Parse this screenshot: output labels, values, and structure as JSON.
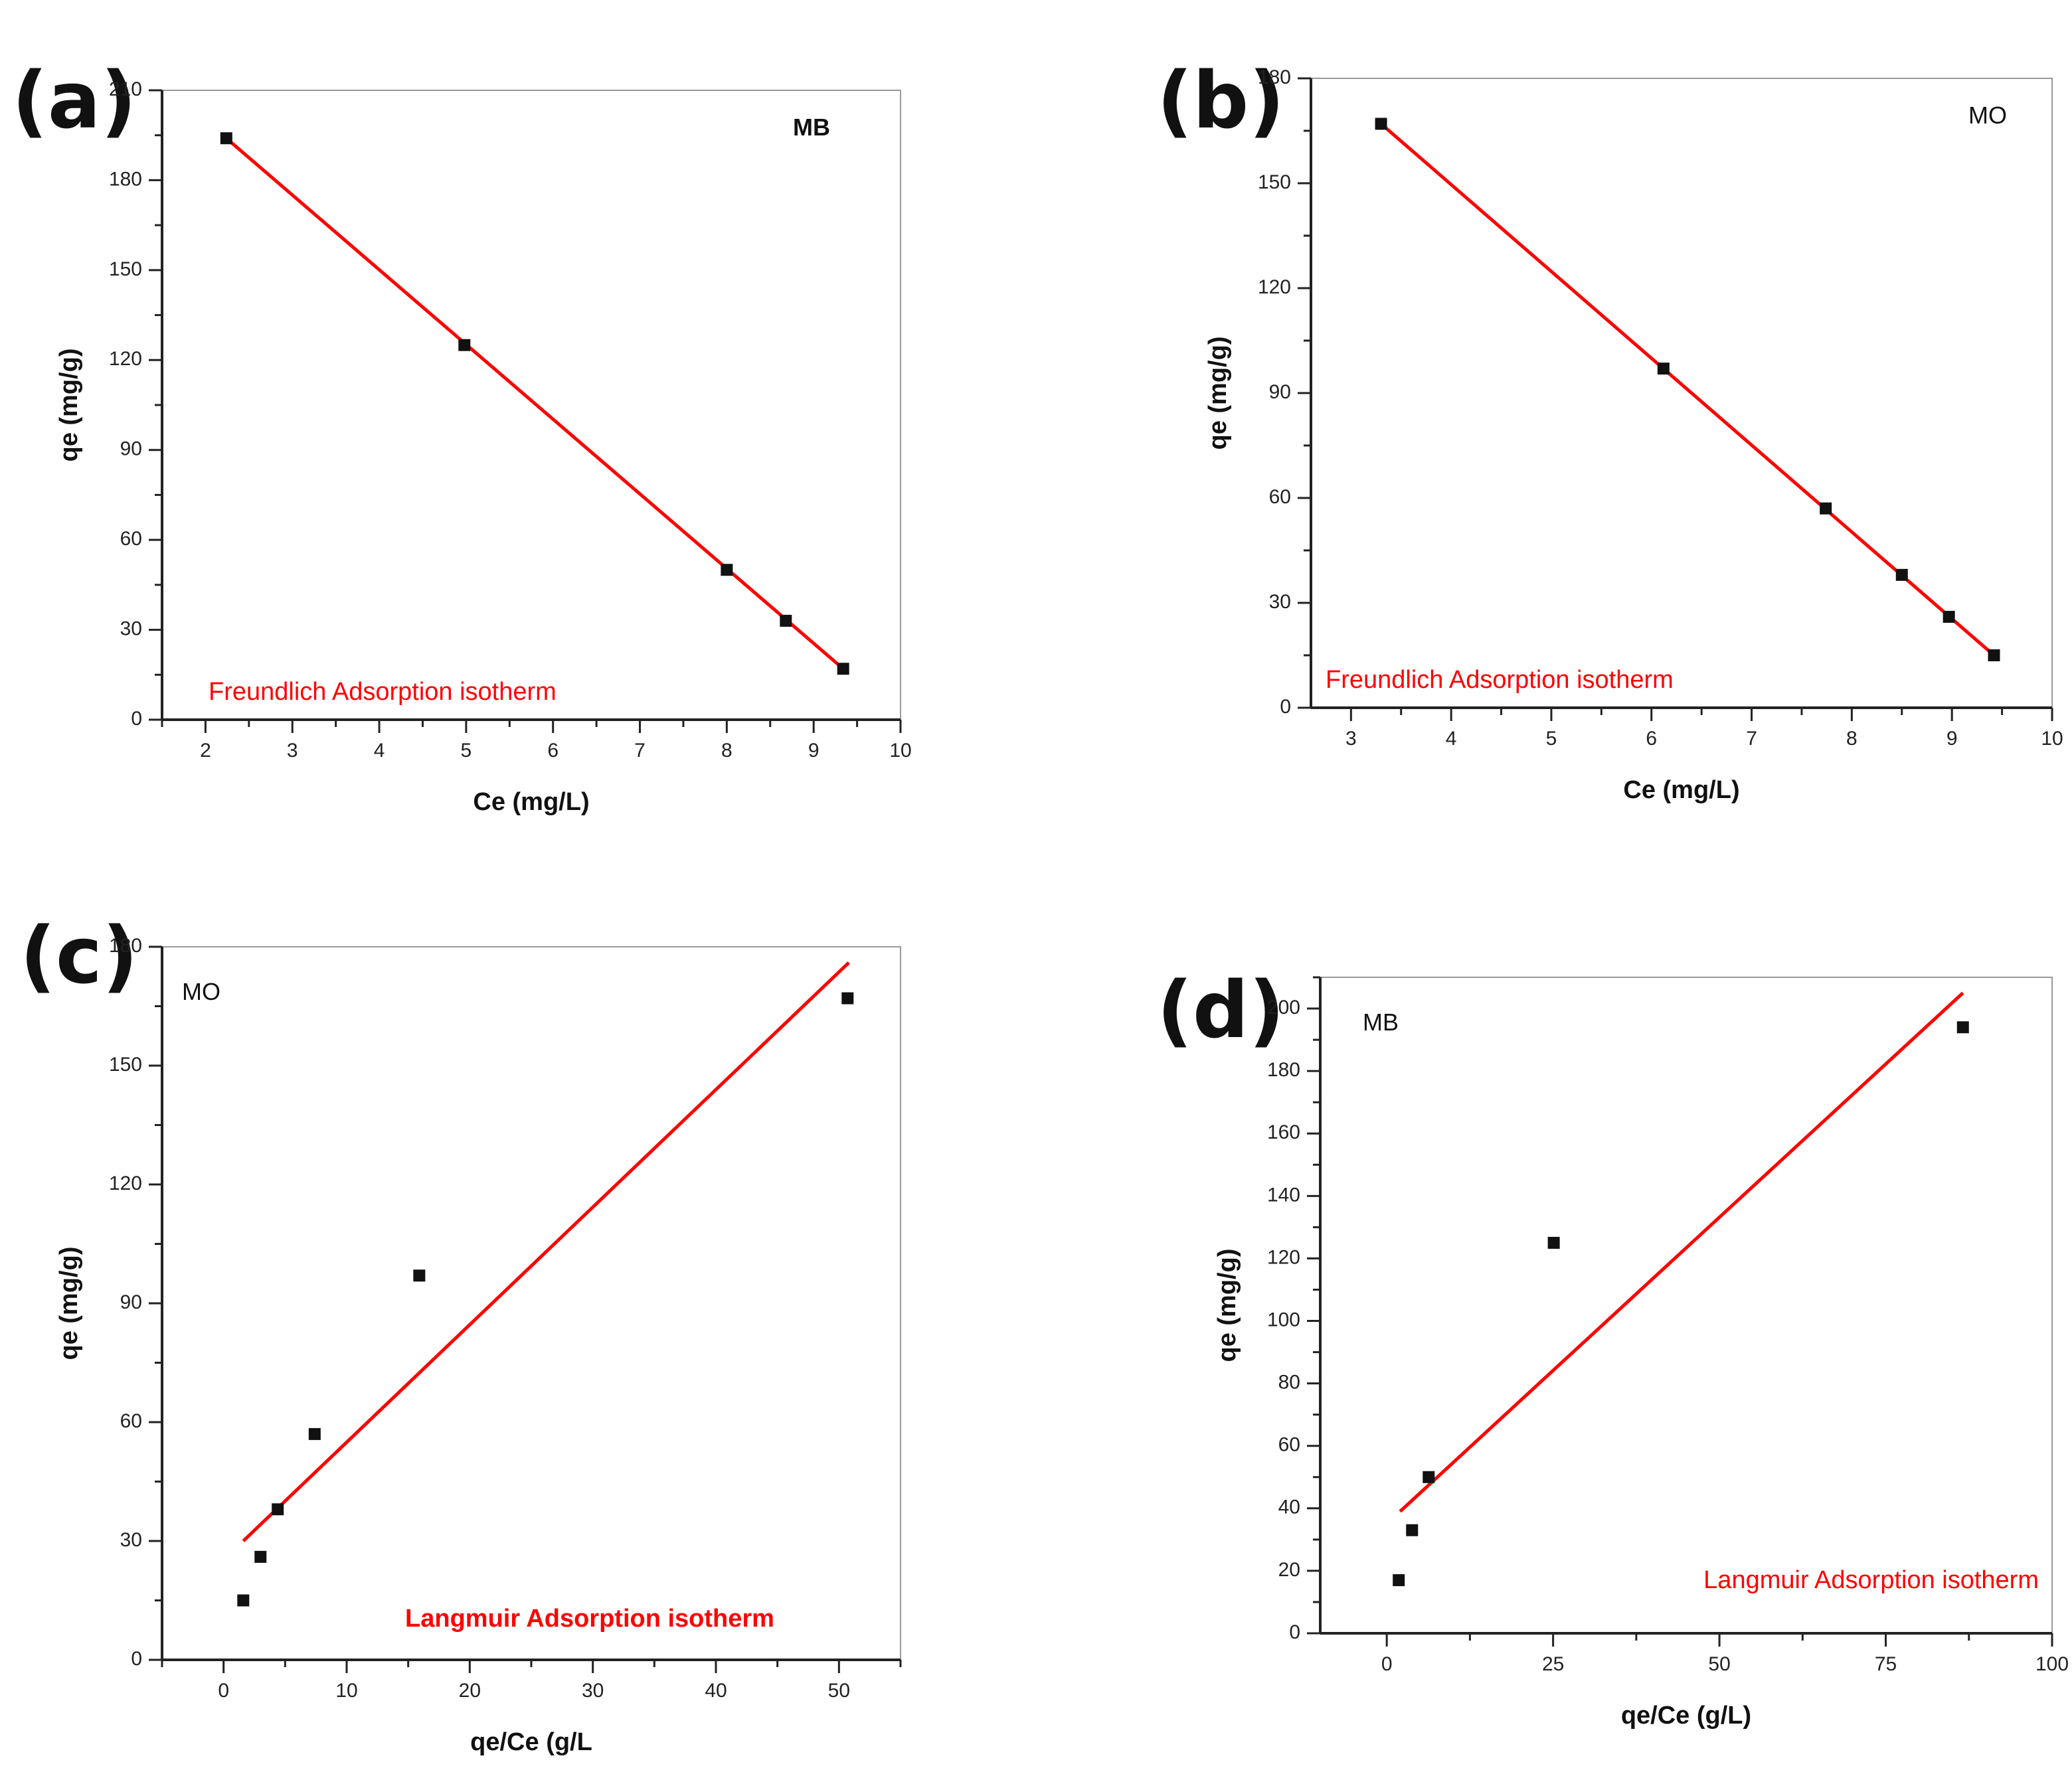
{
  "colors": {
    "fit": "#ff0000",
    "points": "#111111",
    "axes": "#222222"
  },
  "chart_data": [
    {
      "panel": "(a)",
      "type": "scatter",
      "series_tag": "MB",
      "tag_bold": true,
      "fit_label": "Freundlich Adsorption isotherm",
      "fit_label_bold": false,
      "xlabel": "Ce (mg/L)",
      "ylabel": "qe (mg/g)",
      "xlim": [
        1.5,
        10
      ],
      "ylim": [
        0,
        210
      ],
      "xticks": [
        2,
        3,
        4,
        5,
        6,
        7,
        8,
        9,
        10
      ],
      "yticks": [
        0,
        30,
        60,
        90,
        120,
        150,
        180,
        210
      ],
      "x": [
        2.24,
        4.98,
        8.0,
        8.68,
        9.34
      ],
      "y": [
        194,
        125,
        50,
        33,
        17
      ],
      "fit": {
        "x": [
          2.24,
          9.34
        ],
        "y": [
          194,
          17
        ]
      }
    },
    {
      "panel": "(b)",
      "type": "scatter",
      "series_tag": "MO",
      "tag_bold": false,
      "fit_label": "Freundlich Adsorption isotherm",
      "fit_label_bold": false,
      "xlabel": "Ce (mg/L)",
      "ylabel": "qe (mg/g)",
      "xlim": [
        2.6,
        10
      ],
      "ylim": [
        0,
        180
      ],
      "xticks": [
        3,
        4,
        5,
        6,
        7,
        8,
        9,
        10
      ],
      "yticks": [
        0,
        30,
        60,
        90,
        120,
        150,
        180
      ],
      "x": [
        3.3,
        6.12,
        7.74,
        8.5,
        8.97,
        9.42
      ],
      "y": [
        167,
        97,
        57,
        38,
        26,
        15
      ],
      "fit": {
        "x": [
          3.3,
          9.42
        ],
        "y": [
          167,
          15
        ]
      }
    },
    {
      "panel": "(c)",
      "type": "scatter",
      "series_tag": "MO",
      "tag_bold": false,
      "fit_label": "Langmuir Adsorption isotherm",
      "fit_label_bold": true,
      "xlabel": "qe/Ce (g/L",
      "ylabel": "qe (mg/g)",
      "xlim": [
        -5,
        55
      ],
      "ylim": [
        0,
        180
      ],
      "xticks": [
        0,
        10,
        20,
        30,
        40,
        50
      ],
      "yticks": [
        0,
        30,
        60,
        90,
        120,
        150,
        180
      ],
      "x": [
        1.6,
        3.0,
        4.4,
        7.4,
        15.9,
        50.7
      ],
      "y": [
        15,
        26,
        38,
        57,
        97,
        167
      ],
      "fit": {
        "x": [
          1.6,
          50.8
        ],
        "y": [
          30,
          176
        ]
      }
    },
    {
      "panel": "(d)",
      "type": "scatter",
      "series_tag": "MB",
      "tag_bold": false,
      "fit_label": "Langmuir Adsorption isotherm",
      "fit_label_bold": false,
      "xlabel": "qe/Ce (g/L)",
      "ylabel": "qe (mg/g)",
      "xlim": [
        -10,
        100
      ],
      "ylim": [
        0,
        210
      ],
      "xticks": [
        0,
        25,
        50,
        75,
        100
      ],
      "yticks": [
        0,
        20,
        40,
        60,
        80,
        100,
        120,
        140,
        160,
        180,
        200
      ],
      "x": [
        1.8,
        3.8,
        6.3,
        25.1,
        86.6
      ],
      "y": [
        17,
        33,
        50,
        125,
        194
      ],
      "fit": {
        "x": [
          2.0,
          86.6
        ],
        "y": [
          39,
          205
        ]
      }
    }
  ]
}
